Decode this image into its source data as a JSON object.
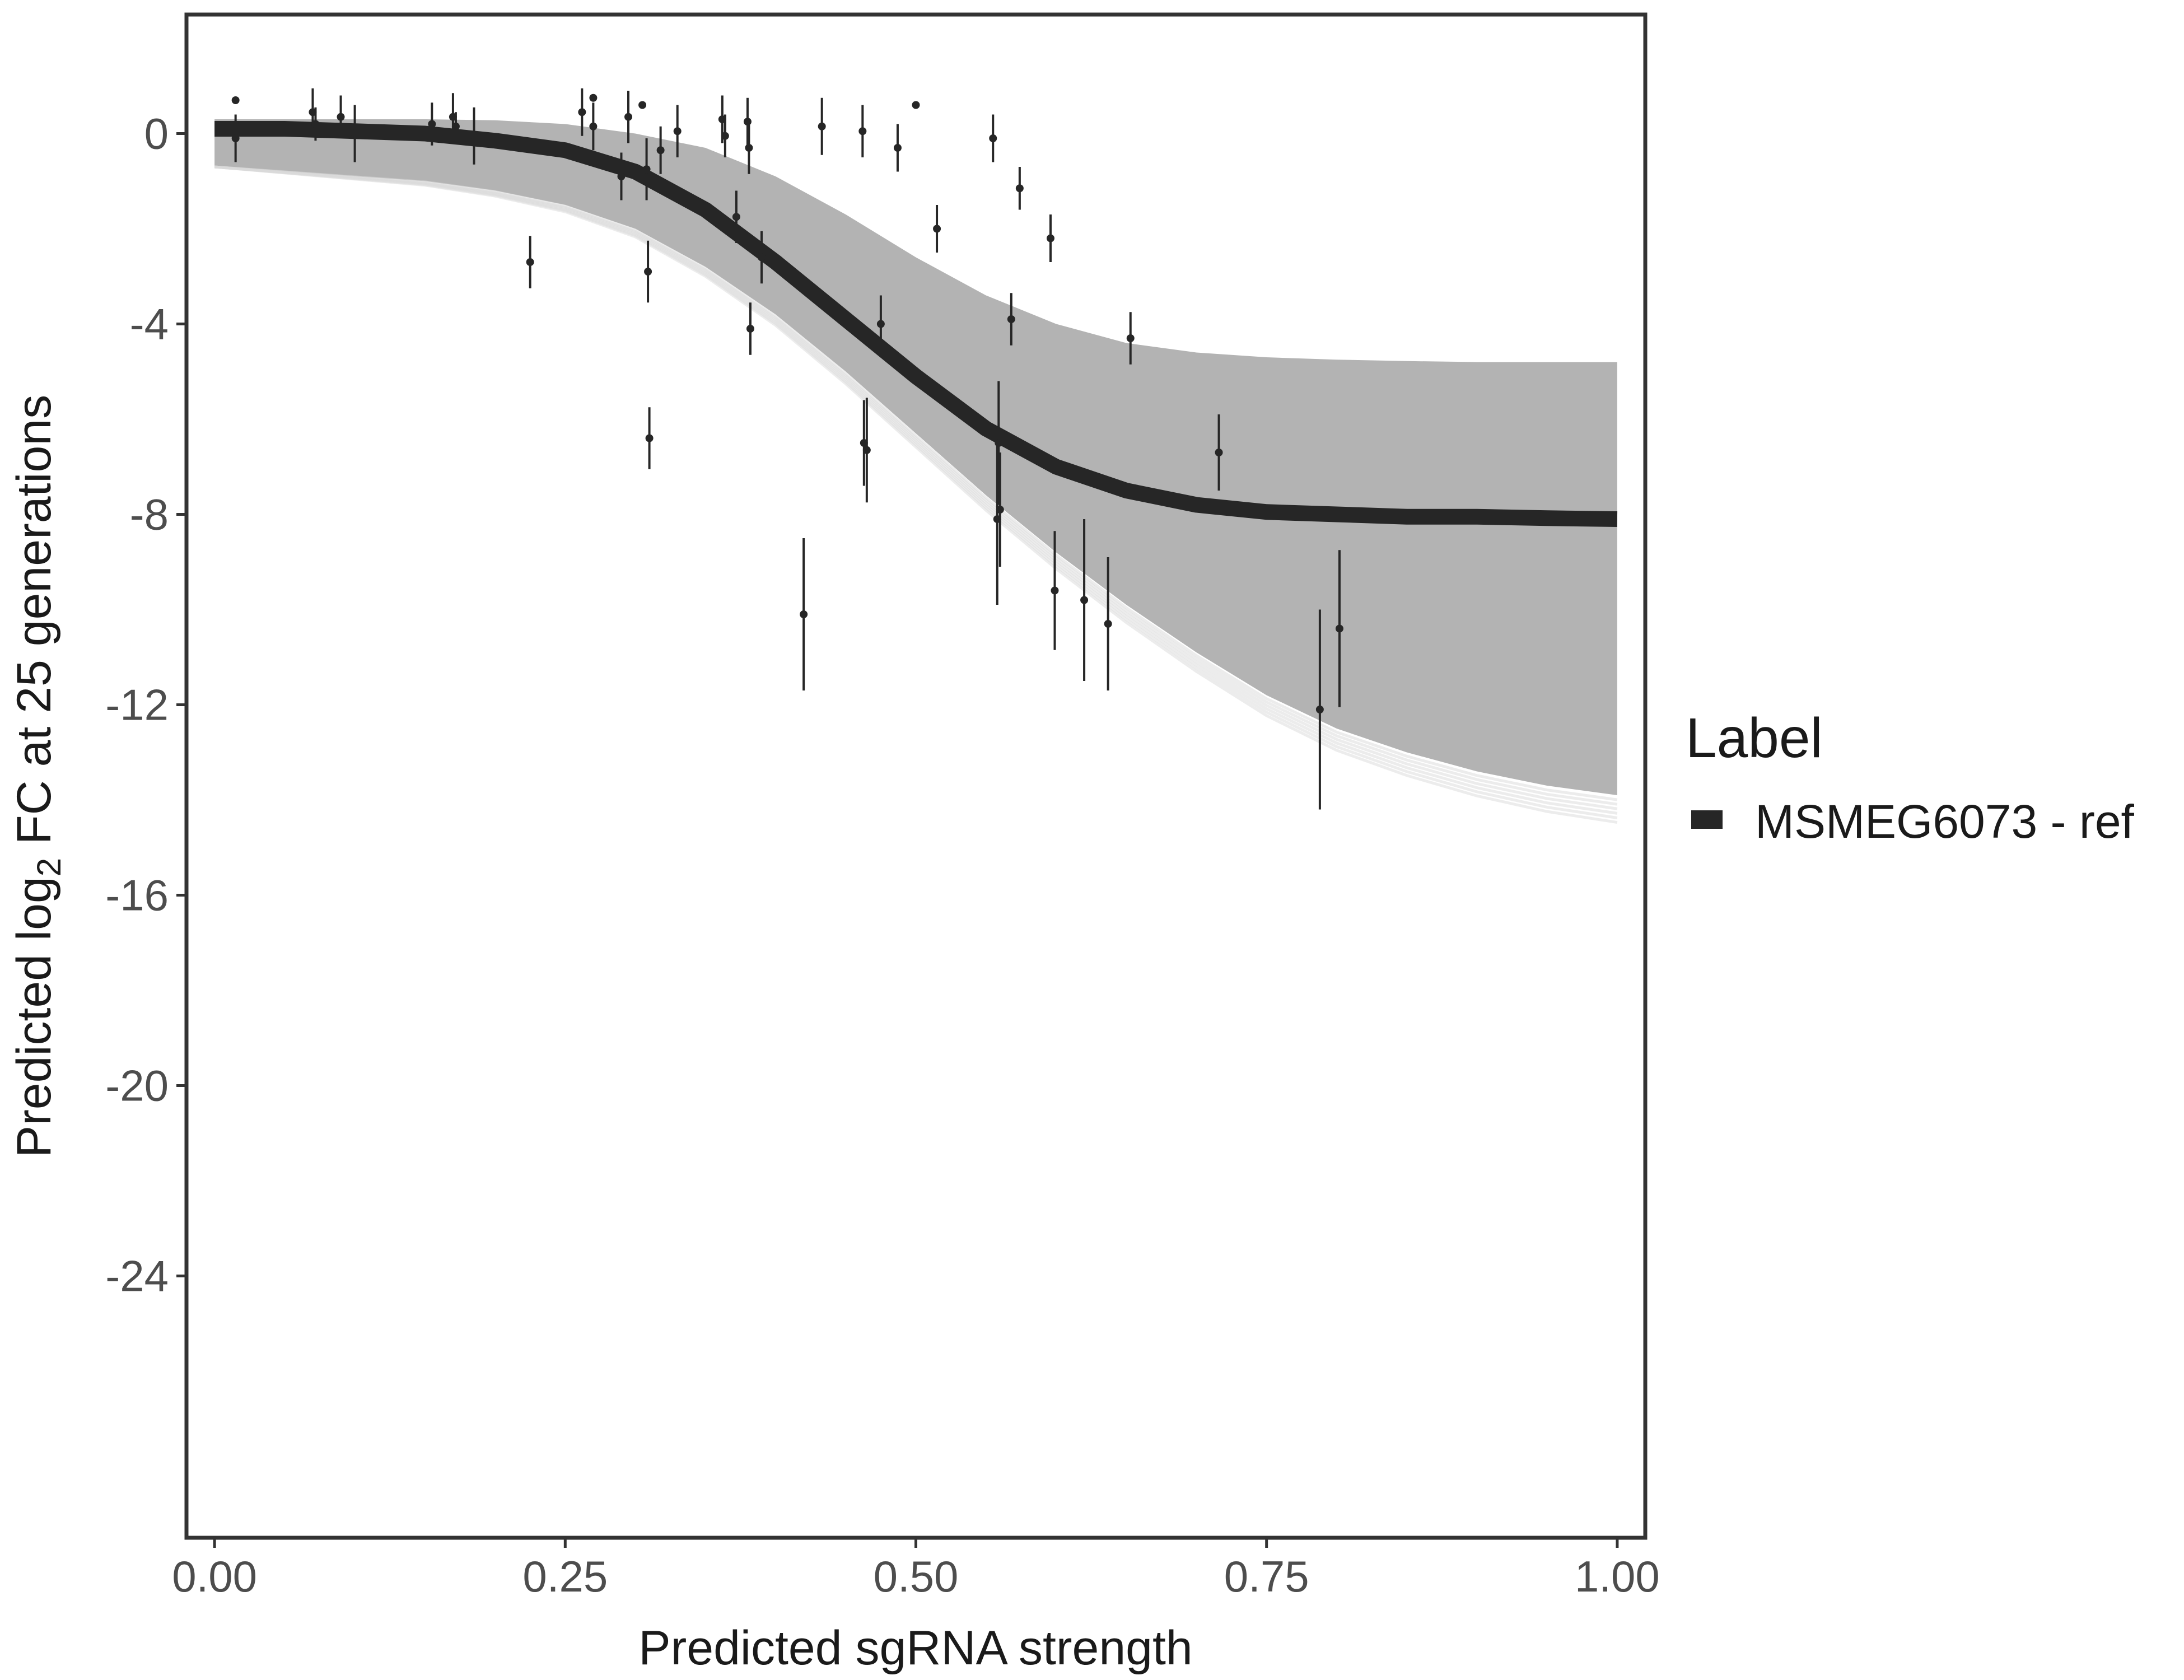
{
  "chart_data": {
    "type": "line",
    "xlabel": "Predicted sgRNA strength",
    "ylabel_prefix": "Predicted  log",
    "ylabel_sub": "2",
    "ylabel_suffix": " FC at 25 generations",
    "xlim": [
      -0.02,
      1.02
    ],
    "ylim": [
      -29.5,
      2.5
    ],
    "x_ticks": [
      0.0,
      0.25,
      0.5,
      0.75,
      1.0
    ],
    "x_tick_labels": [
      "0.00",
      "0.25",
      "0.50",
      "0.75",
      "1.00"
    ],
    "y_ticks": [
      0,
      -4,
      -8,
      -12,
      -16,
      -20,
      -24
    ],
    "y_tick_labels": [
      "0",
      "-4",
      "-8",
      "-12",
      "-16",
      "-20",
      "-24"
    ],
    "grid": false,
    "legend": {
      "title": "Label",
      "position": "right",
      "entries": [
        {
          "label": "MSMEG6073 - ref",
          "color": "#262626"
        }
      ]
    },
    "fit_curve": {
      "name": "MSMEG6073 - ref",
      "color": "#262626",
      "x": [
        0.0,
        0.05,
        0.1,
        0.15,
        0.2,
        0.25,
        0.3,
        0.35,
        0.4,
        0.45,
        0.5,
        0.55,
        0.6,
        0.65,
        0.7,
        0.75,
        0.8,
        0.85,
        0.9,
        0.95,
        1.0
      ],
      "y": [
        0.1,
        0.1,
        0.05,
        0.0,
        -0.15,
        -0.35,
        -0.8,
        -1.6,
        -2.7,
        -3.9,
        -5.1,
        -6.2,
        -7.0,
        -7.5,
        -7.8,
        -7.95,
        -8.0,
        -8.05,
        -8.05,
        -8.08,
        -8.1
      ]
    },
    "posterior_band": {
      "color": "#a6a6a6",
      "x": [
        0.0,
        0.05,
        0.1,
        0.15,
        0.2,
        0.25,
        0.3,
        0.35,
        0.4,
        0.45,
        0.5,
        0.55,
        0.6,
        0.65,
        0.7,
        0.75,
        0.8,
        0.85,
        0.9,
        0.95,
        1.0
      ],
      "upper": [
        0.3,
        0.3,
        0.3,
        0.3,
        0.28,
        0.2,
        0.0,
        -0.3,
        -0.9,
        -1.7,
        -2.6,
        -3.4,
        -4.0,
        -4.4,
        -4.6,
        -4.7,
        -4.75,
        -4.78,
        -4.8,
        -4.8,
        -4.8
      ],
      "lower": [
        -0.7,
        -0.8,
        -0.9,
        -1.0,
        -1.2,
        -1.5,
        -2.0,
        -2.8,
        -3.8,
        -5.0,
        -6.3,
        -7.6,
        -8.8,
        -9.9,
        -10.9,
        -11.8,
        -12.5,
        -13.0,
        -13.4,
        -13.7,
        -13.9
      ]
    },
    "points": [
      {
        "x": 0.015,
        "y": 0.7,
        "err": 0.0
      },
      {
        "x": 0.015,
        "y": -0.1,
        "err": 0.5
      },
      {
        "x": 0.07,
        "y": 0.45,
        "err": 0.5
      },
      {
        "x": 0.072,
        "y": 0.2,
        "err": 0.35
      },
      {
        "x": 0.09,
        "y": 0.35,
        "err": 0.45
      },
      {
        "x": 0.1,
        "y": 0.0,
        "err": 0.6
      },
      {
        "x": 0.155,
        "y": 0.2,
        "err": 0.45
      },
      {
        "x": 0.17,
        "y": 0.35,
        "err": 0.5
      },
      {
        "x": 0.172,
        "y": 0.15,
        "err": 0.3
      },
      {
        "x": 0.185,
        "y": -0.05,
        "err": 0.6
      },
      {
        "x": 0.225,
        "y": -2.7,
        "err": 0.55
      },
      {
        "x": 0.262,
        "y": 0.45,
        "err": 0.5
      },
      {
        "x": 0.27,
        "y": 0.75,
        "err": 0.0
      },
      {
        "x": 0.27,
        "y": 0.15,
        "err": 0.5
      },
      {
        "x": 0.29,
        "y": -0.9,
        "err": 0.5
      },
      {
        "x": 0.295,
        "y": 0.35,
        "err": 0.55
      },
      {
        "x": 0.305,
        "y": 0.6,
        "err": 0.0
      },
      {
        "x": 0.308,
        "y": -0.75,
        "err": 0.65
      },
      {
        "x": 0.309,
        "y": -2.9,
        "err": 0.65
      },
      {
        "x": 0.31,
        "y": -6.4,
        "err": 0.65
      },
      {
        "x": 0.318,
        "y": -0.35,
        "err": 0.5
      },
      {
        "x": 0.33,
        "y": 0.05,
        "err": 0.55
      },
      {
        "x": 0.362,
        "y": 0.3,
        "err": 0.5
      },
      {
        "x": 0.364,
        "y": -0.05,
        "err": 0.45
      },
      {
        "x": 0.372,
        "y": -1.75,
        "err": 0.55
      },
      {
        "x": 0.38,
        "y": 0.25,
        "err": 0.5
      },
      {
        "x": 0.381,
        "y": -0.3,
        "err": 0.55
      },
      {
        "x": 0.382,
        "y": -4.1,
        "err": 0.55
      },
      {
        "x": 0.39,
        "y": -2.6,
        "err": 0.55
      },
      {
        "x": 0.42,
        "y": -10.1,
        "err": 1.6
      },
      {
        "x": 0.433,
        "y": 0.15,
        "err": 0.6
      },
      {
        "x": 0.462,
        "y": 0.05,
        "err": 0.55
      },
      {
        "x": 0.463,
        "y": -6.5,
        "err": 0.9
      },
      {
        "x": 0.465,
        "y": -6.65,
        "err": 1.1
      },
      {
        "x": 0.475,
        "y": -4.0,
        "err": 0.6
      },
      {
        "x": 0.487,
        "y": -0.3,
        "err": 0.5
      },
      {
        "x": 0.5,
        "y": 0.6,
        "err": 0.0
      },
      {
        "x": 0.515,
        "y": -2.0,
        "err": 0.5
      },
      {
        "x": 0.555,
        "y": -0.1,
        "err": 0.5
      },
      {
        "x": 0.558,
        "y": -8.1,
        "err": 1.8
      },
      {
        "x": 0.559,
        "y": -6.5,
        "err": 1.3
      },
      {
        "x": 0.56,
        "y": -7.9,
        "err": 1.2
      },
      {
        "x": 0.568,
        "y": -3.9,
        "err": 0.55
      },
      {
        "x": 0.574,
        "y": -1.15,
        "err": 0.45
      },
      {
        "x": 0.596,
        "y": -2.2,
        "err": 0.5
      },
      {
        "x": 0.599,
        "y": -9.6,
        "err": 1.25
      },
      {
        "x": 0.62,
        "y": -9.8,
        "err": 1.7
      },
      {
        "x": 0.637,
        "y": -10.3,
        "err": 1.4
      },
      {
        "x": 0.653,
        "y": -4.3,
        "err": 0.55
      },
      {
        "x": 0.716,
        "y": -6.7,
        "err": 0.8
      },
      {
        "x": 0.788,
        "y": -12.1,
        "err": 2.1
      },
      {
        "x": 0.802,
        "y": -10.4,
        "err": 1.65
      }
    ]
  }
}
